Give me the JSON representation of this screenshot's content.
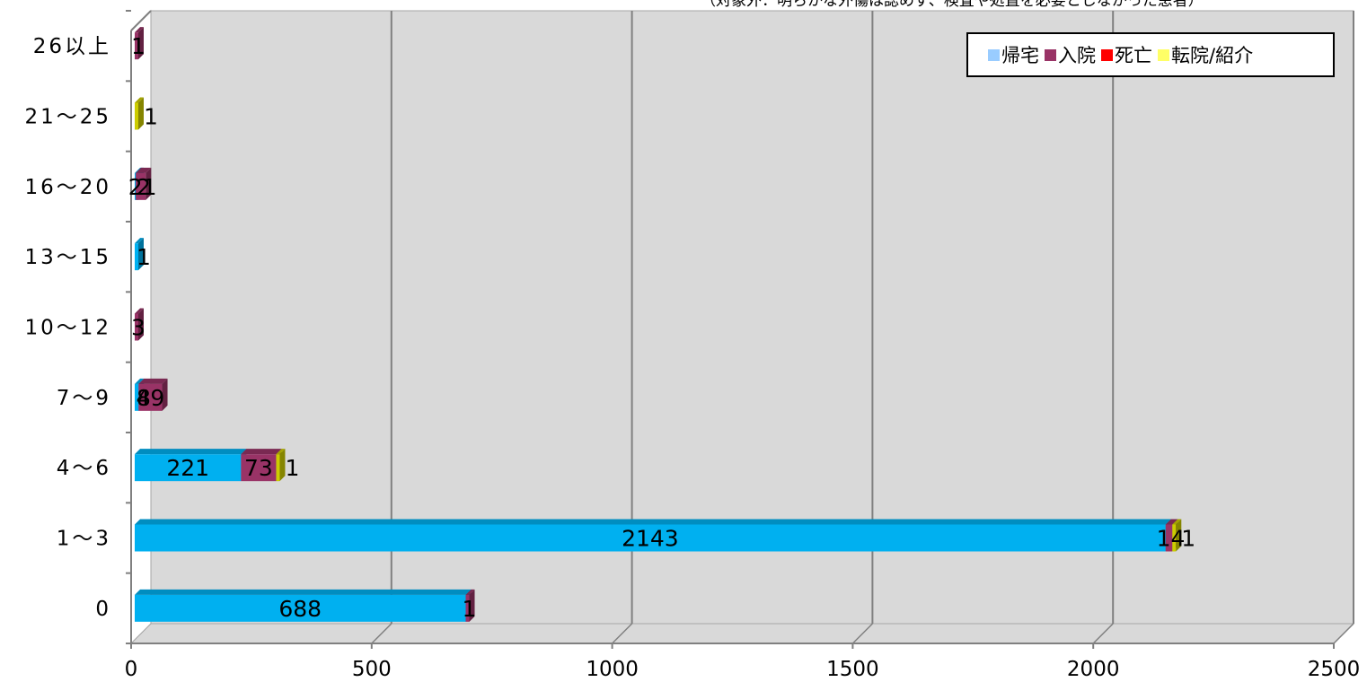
{
  "subtitle": "（対象外：明らかな外傷は認めず、検査や処置を必要としなかった患者）",
  "chart_data": {
    "type": "bar",
    "orientation": "horizontal",
    "stacked": true,
    "three_d": true,
    "categories": [
      "0",
      "1～3",
      "4～6",
      "7～9",
      "10～12",
      "13～15",
      "16～20",
      "21～25",
      "26以上"
    ],
    "series": [
      {
        "name": "帰宅",
        "color": "#00b0f0",
        "legend_color": "#99ccff",
        "values": [
          688,
          2143,
          221,
          8,
          0,
          1,
          2,
          0,
          0
        ],
        "labels": [
          "688",
          "2143",
          "221",
          "8",
          "",
          "1",
          "2",
          "",
          ""
        ]
      },
      {
        "name": "入院",
        "color": "#993366",
        "legend_color": "#993366",
        "values": [
          1,
          14,
          73,
          49,
          3,
          0,
          21,
          0,
          1
        ],
        "labels": [
          "1",
          "14",
          "73",
          "49",
          "3",
          "",
          "21",
          "",
          "1"
        ]
      },
      {
        "name": "死亡",
        "color": "#ff0000",
        "legend_color": "#ff0000",
        "values": [
          0,
          0,
          0,
          0,
          0,
          0,
          0,
          0,
          0
        ],
        "labels": [
          "",
          "",
          "",
          "",
          "",
          "",
          "",
          "",
          ""
        ]
      },
      {
        "name": "転院/紹介",
        "color": "#cccc00",
        "legend_color": "#ffff66",
        "values": [
          0,
          1,
          1,
          0,
          0,
          0,
          0,
          1,
          0
        ],
        "labels": [
          "",
          "1",
          "1",
          "",
          "",
          "",
          "",
          "1",
          ""
        ]
      }
    ],
    "xlim": [
      0,
      2500
    ],
    "xticks": [
      0,
      500,
      1000,
      1500,
      2000,
      2500
    ],
    "grid": true,
    "legend_position": "top-right"
  }
}
